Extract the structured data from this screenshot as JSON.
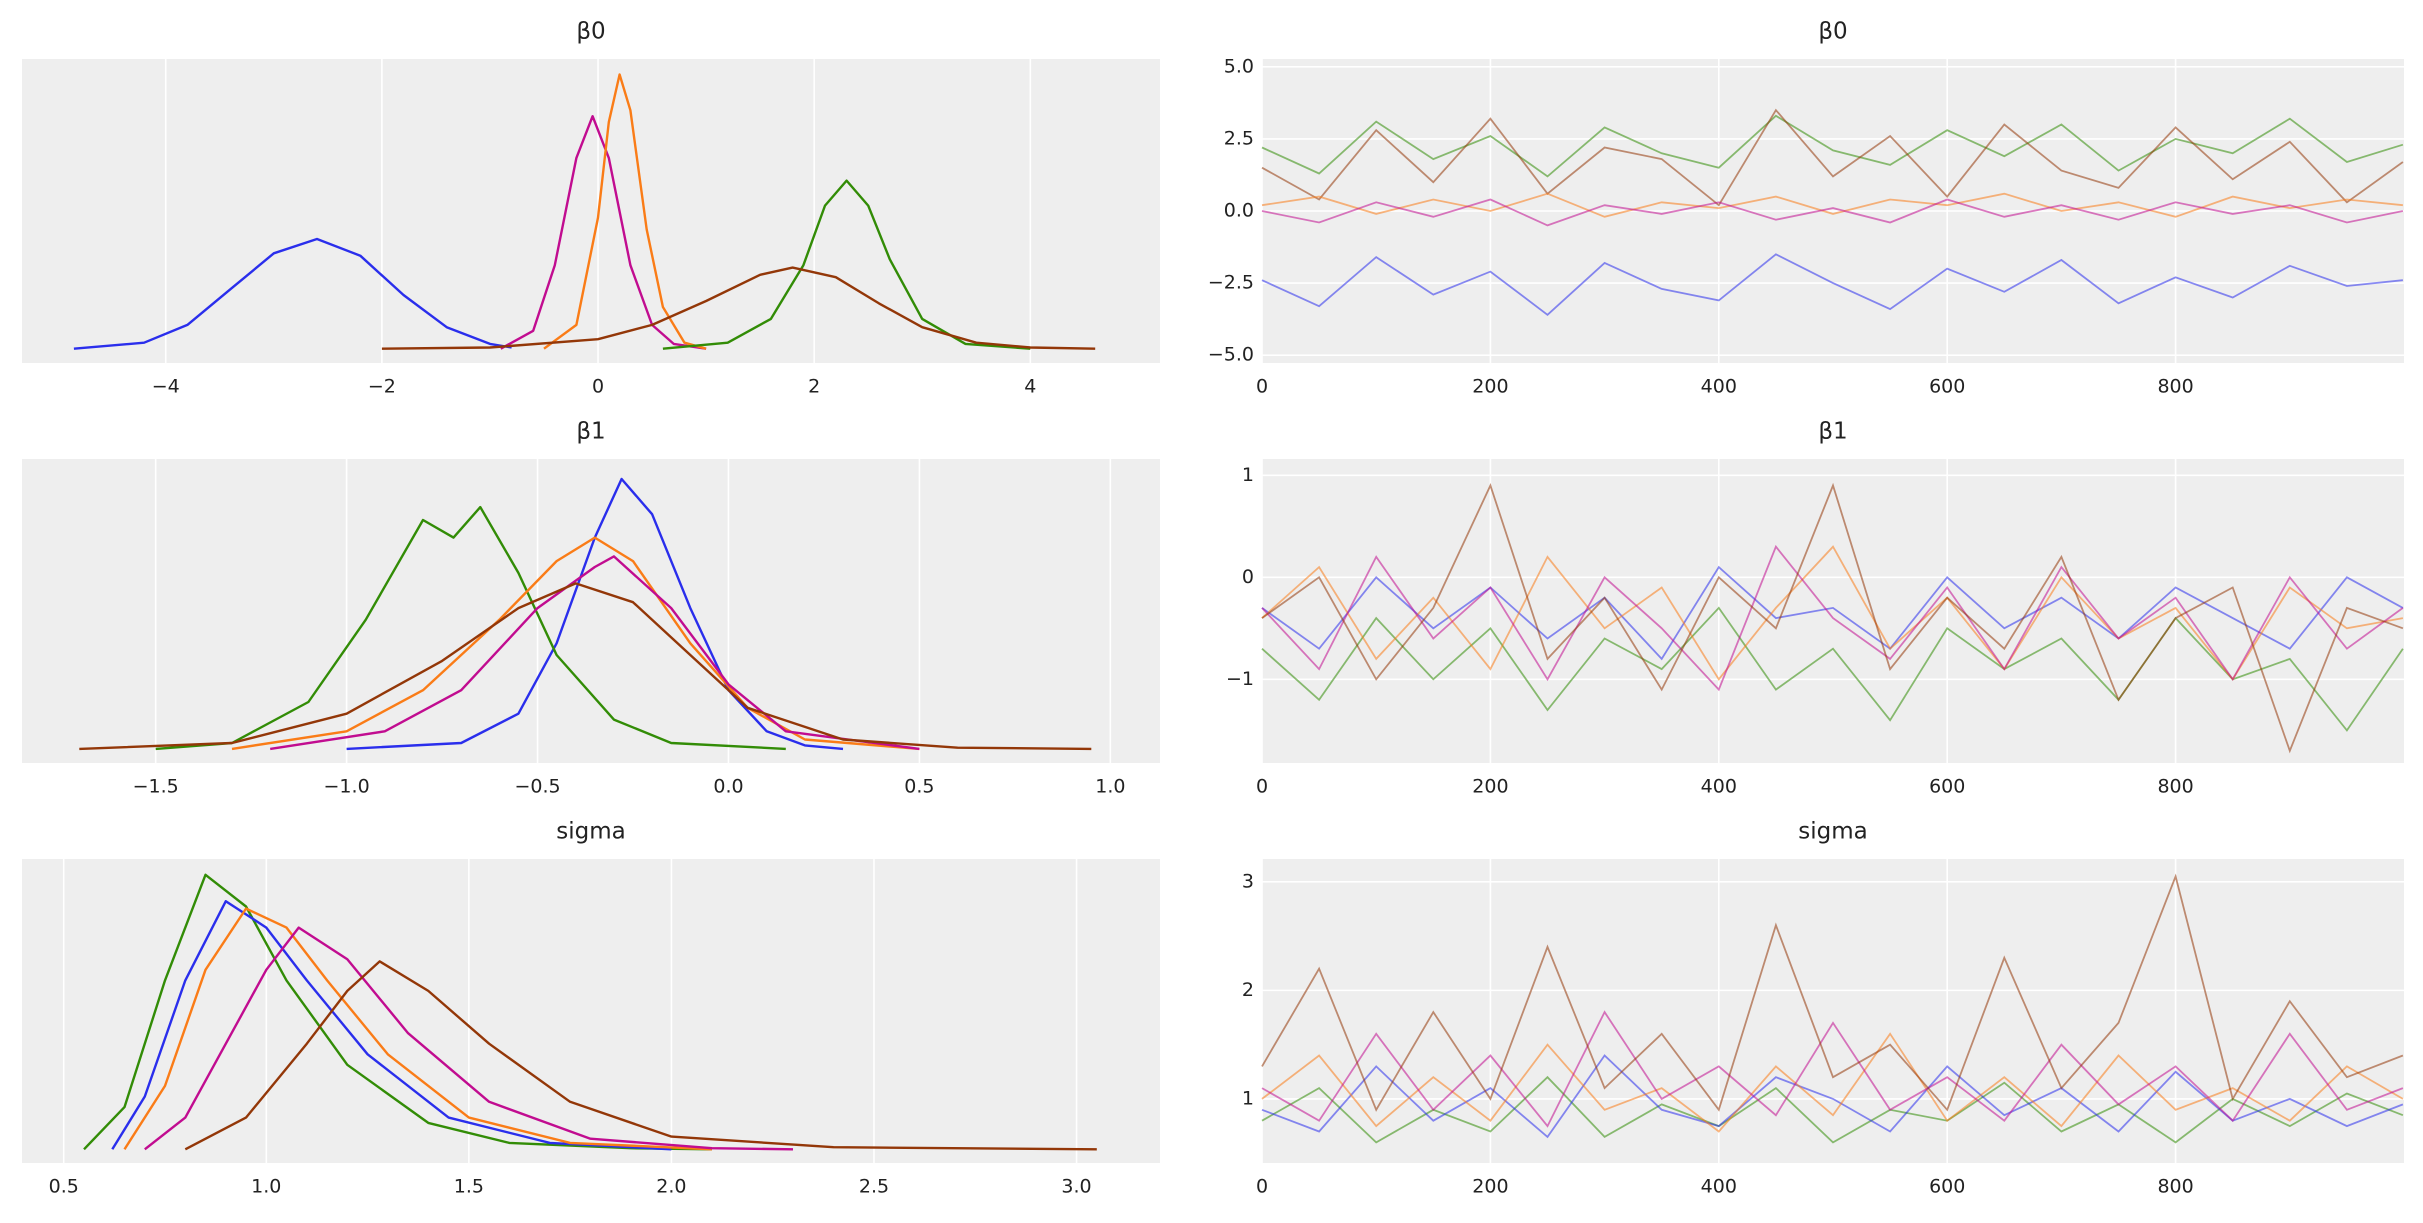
{
  "chart_data": [
    {
      "type": "kde",
      "title": "β0",
      "grid": true,
      "xlim": [
        -5.33,
        5.2
      ],
      "xticks": [
        {
          "value": -4,
          "label": "−4"
        },
        {
          "value": -2,
          "label": "−2"
        },
        0,
        2,
        4
      ],
      "ylim": [
        -0.12,
        2.43
      ],
      "series": [
        {
          "color": "#2a2eec",
          "x": [
            -4.85,
            -4.2,
            -3.8,
            -3.4,
            -3.0,
            -2.6,
            -2.2,
            -1.8,
            -1.4,
            -1.0,
            -0.8
          ],
          "values": [
            0,
            0.05,
            0.2,
            0.5,
            0.8,
            0.92,
            0.78,
            0.45,
            0.18,
            0.04,
            0.01
          ]
        },
        {
          "color": "#c10c90",
          "x": [
            -0.9,
            -0.6,
            -0.4,
            -0.2,
            -0.05,
            0.1,
            0.3,
            0.5,
            0.7,
            1.0
          ],
          "values": [
            0,
            0.15,
            0.7,
            1.6,
            1.95,
            1.6,
            0.7,
            0.2,
            0.04,
            0
          ]
        },
        {
          "color": "#fa7c17",
          "x": [
            -0.5,
            -0.2,
            0,
            0.1,
            0.2,
            0.3,
            0.45,
            0.6,
            0.8,
            1.0
          ],
          "values": [
            0,
            0.2,
            1.1,
            1.9,
            2.3,
            2.0,
            1.0,
            0.35,
            0.05,
            0
          ]
        },
        {
          "color": "#328c06",
          "x": [
            0.6,
            1.2,
            1.6,
            1.9,
            2.1,
            2.3,
            2.5,
            2.7,
            3.0,
            3.4,
            4.0
          ],
          "values": [
            0,
            0.05,
            0.25,
            0.7,
            1.2,
            1.41,
            1.2,
            0.75,
            0.25,
            0.04,
            0
          ]
        },
        {
          "color": "#933708",
          "x": [
            -2,
            -1,
            0,
            0.5,
            1.0,
            1.5,
            1.8,
            2.2,
            2.6,
            3.0,
            3.5,
            4.0,
            4.6
          ],
          "values": [
            0,
            0.01,
            0.08,
            0.2,
            0.4,
            0.62,
            0.68,
            0.6,
            0.38,
            0.18,
            0.05,
            0.01,
            0
          ]
        }
      ]
    },
    {
      "type": "trace",
      "title": "β0",
      "grid": true,
      "xlim": [
        0,
        1000
      ],
      "xticks": [
        0,
        200,
        400,
        600,
        800
      ],
      "ylim": [
        -5.27,
        5.27
      ],
      "yticks": [
        {
          "value": 5,
          "label": "5.0"
        },
        {
          "value": 2.5,
          "label": "2.5"
        },
        {
          "value": 0,
          "label": "0.0"
        },
        {
          "value": -2.5,
          "label": "−2.5"
        },
        {
          "value": -5,
          "label": "−5.0"
        }
      ],
      "x": [
        0,
        50,
        100,
        150,
        200,
        250,
        300,
        350,
        400,
        450,
        500,
        550,
        600,
        650,
        700,
        750,
        800,
        850,
        900,
        950,
        999
      ],
      "series": [
        {
          "color": "#2a2eec",
          "values": [
            -2.4,
            -3.3,
            -1.6,
            -2.9,
            -2.1,
            -3.6,
            -1.8,
            -2.7,
            -3.1,
            -1.5,
            -2.5,
            -3.4,
            -2.0,
            -2.8,
            -1.7,
            -3.2,
            -2.3,
            -3.0,
            -1.9,
            -2.6,
            -2.4
          ]
        },
        {
          "color": "#328c06",
          "values": [
            2.2,
            1.3,
            3.1,
            1.8,
            2.6,
            1.2,
            2.9,
            2.0,
            1.5,
            3.3,
            2.1,
            1.6,
            2.8,
            1.9,
            3.0,
            1.4,
            2.5,
            2.0,
            3.2,
            1.7,
            2.3
          ]
        },
        {
          "color": "#933708",
          "values": [
            1.5,
            0.4,
            2.8,
            1.0,
            3.2,
            0.6,
            2.2,
            1.8,
            0.2,
            3.5,
            1.2,
            2.6,
            0.5,
            3.0,
            1.4,
            0.8,
            2.9,
            1.1,
            2.4,
            0.3,
            1.7
          ]
        },
        {
          "color": "#fa7c17",
          "values": [
            0.2,
            0.5,
            -0.1,
            0.4,
            0.0,
            0.6,
            -0.2,
            0.3,
            0.1,
            0.5,
            -0.1,
            0.4,
            0.2,
            0.6,
            0.0,
            0.3,
            -0.2,
            0.5,
            0.1,
            0.4,
            0.2
          ]
        },
        {
          "color": "#c10c90",
          "values": [
            0.0,
            -0.4,
            0.3,
            -0.2,
            0.4,
            -0.5,
            0.2,
            -0.1,
            0.3,
            -0.3,
            0.1,
            -0.4,
            0.4,
            -0.2,
            0.2,
            -0.3,
            0.3,
            -0.1,
            0.2,
            -0.4,
            0.0
          ]
        }
      ]
    },
    {
      "type": "kde",
      "title": "β1",
      "grid": true,
      "xlim": [
        -1.85,
        1.13
      ],
      "xticks": [
        {
          "value": -1.5,
          "label": "−1.5"
        },
        {
          "value": -1,
          "label": "−1.0"
        },
        {
          "value": -0.5,
          "label": "−0.5"
        },
        {
          "value": 0,
          "label": "0.0"
        },
        0.5,
        {
          "value": 1,
          "label": "1.0"
        }
      ],
      "ylim": [
        -0.12,
        2.47
      ],
      "series": [
        {
          "color": "#2a2eec",
          "x": [
            -1.0,
            -0.7,
            -0.55,
            -0.45,
            -0.35,
            -0.28,
            -0.2,
            -0.1,
            0,
            0.1,
            0.2,
            0.3
          ],
          "values": [
            0,
            0.05,
            0.3,
            0.9,
            1.8,
            2.3,
            2.0,
            1.2,
            0.5,
            0.15,
            0.03,
            0
          ]
        },
        {
          "color": "#328c06",
          "x": [
            -1.5,
            -1.3,
            -1.1,
            -0.95,
            -0.8,
            -0.72,
            -0.65,
            -0.55,
            -0.45,
            -0.3,
            -0.15,
            0.15
          ],
          "values": [
            0,
            0.05,
            0.4,
            1.1,
            1.95,
            1.8,
            2.06,
            1.5,
            0.8,
            0.25,
            0.05,
            0
          ]
        },
        {
          "color": "#fa7c17",
          "x": [
            -1.3,
            -1.0,
            -0.8,
            -0.6,
            -0.45,
            -0.35,
            -0.25,
            -0.1,
            0.05,
            0.2,
            0.5
          ],
          "values": [
            0,
            0.15,
            0.5,
            1.1,
            1.6,
            1.8,
            1.6,
            0.9,
            0.35,
            0.08,
            0
          ]
        },
        {
          "color": "#c10c90",
          "x": [
            -1.2,
            -0.9,
            -0.7,
            -0.5,
            -0.35,
            -0.3,
            -0.15,
            0,
            0.15,
            0.5
          ],
          "values": [
            0,
            0.15,
            0.5,
            1.2,
            1.55,
            1.64,
            1.2,
            0.55,
            0.15,
            0
          ]
        },
        {
          "color": "#933708",
          "x": [
            -1.7,
            -1.3,
            -1.0,
            -0.75,
            -0.55,
            -0.4,
            -0.25,
            -0.1,
            0.05,
            0.3,
            0.6,
            0.95
          ],
          "values": [
            0,
            0.05,
            0.3,
            0.75,
            1.2,
            1.41,
            1.25,
            0.8,
            0.35,
            0.08,
            0.01,
            0
          ]
        }
      ]
    },
    {
      "type": "trace",
      "title": "β1",
      "grid": true,
      "xlim": [
        0,
        1000
      ],
      "xticks": [
        0,
        200,
        400,
        600,
        800
      ],
      "ylim": [
        -1.82,
        1.16
      ],
      "yticks": [
        1,
        0,
        {
          "value": -1,
          "label": "−1"
        }
      ],
      "x": [
        0,
        50,
        100,
        150,
        200,
        250,
        300,
        350,
        400,
        450,
        500,
        550,
        600,
        650,
        700,
        750,
        800,
        850,
        900,
        950,
        999
      ],
      "series": [
        {
          "color": "#2a2eec",
          "values": [
            -0.3,
            -0.7,
            0.0,
            -0.5,
            -0.1,
            -0.6,
            -0.2,
            -0.8,
            0.1,
            -0.4,
            -0.3,
            -0.7,
            0.0,
            -0.5,
            -0.2,
            -0.6,
            -0.1,
            -0.4,
            -0.7,
            0.0,
            -0.3
          ]
        },
        {
          "color": "#328c06",
          "values": [
            -0.7,
            -1.2,
            -0.4,
            -1.0,
            -0.5,
            -1.3,
            -0.6,
            -0.9,
            -0.3,
            -1.1,
            -0.7,
            -1.4,
            -0.5,
            -0.9,
            -0.6,
            -1.2,
            -0.4,
            -1.0,
            -0.8,
            -1.5,
            -0.7
          ]
        },
        {
          "color": "#fa7c17",
          "values": [
            -0.4,
            0.1,
            -0.8,
            -0.2,
            -0.9,
            0.2,
            -0.5,
            -0.1,
            -1.0,
            -0.3,
            0.3,
            -0.7,
            -0.2,
            -0.9,
            0.0,
            -0.6,
            -0.3,
            -1.0,
            -0.1,
            -0.5,
            -0.4
          ]
        },
        {
          "color": "#c10c90",
          "values": [
            -0.3,
            -0.9,
            0.2,
            -0.6,
            -0.1,
            -1.0,
            0.0,
            -0.5,
            -1.1,
            0.3,
            -0.4,
            -0.8,
            -0.1,
            -0.9,
            0.1,
            -0.6,
            -0.2,
            -1.0,
            0.0,
            -0.7,
            -0.3
          ]
        },
        {
          "color": "#933708",
          "values": [
            -0.4,
            0.0,
            -1.0,
            -0.3,
            0.9,
            -0.8,
            -0.2,
            -1.1,
            0.0,
            -0.5,
            0.9,
            -0.9,
            -0.2,
            -0.7,
            0.2,
            -1.2,
            -0.4,
            -0.1,
            -1.7,
            -0.3,
            -0.5
          ]
        }
      ]
    },
    {
      "type": "kde",
      "title": "sigma",
      "grid": true,
      "xlim": [
        0.397,
        3.206
      ],
      "xticks": [
        0.5,
        {
          "value": 1,
          "label": "1.0"
        },
        1.5,
        {
          "value": 2,
          "label": "2.0"
        },
        2.5,
        {
          "value": 3,
          "label": "3.0"
        }
      ],
      "ylim": [
        -0.13,
        2.75
      ],
      "series": [
        {
          "color": "#328c06",
          "x": [
            0.55,
            0.65,
            0.75,
            0.85,
            0.95,
            1.05,
            1.2,
            1.4,
            1.6,
            1.9,
            2.1
          ],
          "values": [
            0,
            0.4,
            1.6,
            2.6,
            2.3,
            1.6,
            0.8,
            0.25,
            0.06,
            0.01,
            0
          ]
        },
        {
          "color": "#2a2eec",
          "x": [
            0.62,
            0.7,
            0.8,
            0.9,
            1.0,
            1.1,
            1.25,
            1.45,
            1.7,
            2.0
          ],
          "values": [
            0,
            0.5,
            1.6,
            2.35,
            2.1,
            1.6,
            0.9,
            0.3,
            0.06,
            0
          ]
        },
        {
          "color": "#fa7c17",
          "x": [
            0.65,
            0.75,
            0.85,
            0.95,
            1.05,
            1.15,
            1.3,
            1.5,
            1.75,
            2.1
          ],
          "values": [
            0,
            0.6,
            1.7,
            2.28,
            2.1,
            1.6,
            0.9,
            0.3,
            0.06,
            0
          ]
        },
        {
          "color": "#c10c90",
          "x": [
            0.7,
            0.8,
            0.9,
            1.0,
            1.08,
            1.2,
            1.35,
            1.55,
            1.8,
            2.1,
            2.3
          ],
          "values": [
            0,
            0.3,
            1.0,
            1.7,
            2.1,
            1.8,
            1.1,
            0.45,
            0.1,
            0.01,
            0
          ]
        },
        {
          "color": "#933708",
          "x": [
            0.8,
            0.95,
            1.1,
            1.2,
            1.28,
            1.4,
            1.55,
            1.75,
            2.0,
            2.4,
            3.05
          ],
          "values": [
            0,
            0.3,
            1.0,
            1.5,
            1.78,
            1.5,
            1.0,
            0.45,
            0.12,
            0.02,
            0
          ]
        }
      ]
    },
    {
      "type": "trace",
      "title": "sigma",
      "grid": true,
      "xlim": [
        0,
        1000
      ],
      "xticks": [
        0,
        200,
        400,
        600,
        800
      ],
      "ylim": [
        0.41,
        3.21
      ],
      "yticks": [
        1,
        2,
        3
      ],
      "x": [
        0,
        50,
        100,
        150,
        200,
        250,
        300,
        350,
        400,
        450,
        500,
        550,
        600,
        650,
        700,
        750,
        800,
        850,
        900,
        950,
        999
      ],
      "series": [
        {
          "color": "#328c06",
          "values": [
            0.8,
            1.1,
            0.6,
            0.9,
            0.7,
            1.2,
            0.65,
            0.95,
            0.75,
            1.1,
            0.6,
            0.9,
            0.8,
            1.15,
            0.7,
            0.95,
            0.6,
            1.0,
            0.75,
            1.05,
            0.85
          ]
        },
        {
          "color": "#2a2eec",
          "values": [
            0.9,
            0.7,
            1.3,
            0.8,
            1.1,
            0.65,
            1.4,
            0.9,
            0.75,
            1.2,
            1.0,
            0.7,
            1.3,
            0.85,
            1.1,
            0.7,
            1.25,
            0.8,
            1.0,
            0.75,
            0.95
          ]
        },
        {
          "color": "#fa7c17",
          "values": [
            1.0,
            1.4,
            0.75,
            1.2,
            0.8,
            1.5,
            0.9,
            1.1,
            0.7,
            1.3,
            0.85,
            1.6,
            0.8,
            1.2,
            0.75,
            1.4,
            0.9,
            1.1,
            0.8,
            1.3,
            1.0
          ]
        },
        {
          "color": "#c10c90",
          "values": [
            1.1,
            0.8,
            1.6,
            0.9,
            1.4,
            0.75,
            1.8,
            1.0,
            1.3,
            0.85,
            1.7,
            0.9,
            1.2,
            0.8,
            1.5,
            0.95,
            1.3,
            0.8,
            1.6,
            0.9,
            1.1
          ]
        },
        {
          "color": "#933708",
          "values": [
            1.3,
            2.2,
            0.9,
            1.8,
            1.0,
            2.4,
            1.1,
            1.6,
            0.9,
            2.6,
            1.2,
            1.5,
            0.9,
            2.3,
            1.1,
            1.7,
            3.05,
            1.0,
            1.9,
            1.2,
            1.4
          ]
        }
      ]
    }
  ]
}
